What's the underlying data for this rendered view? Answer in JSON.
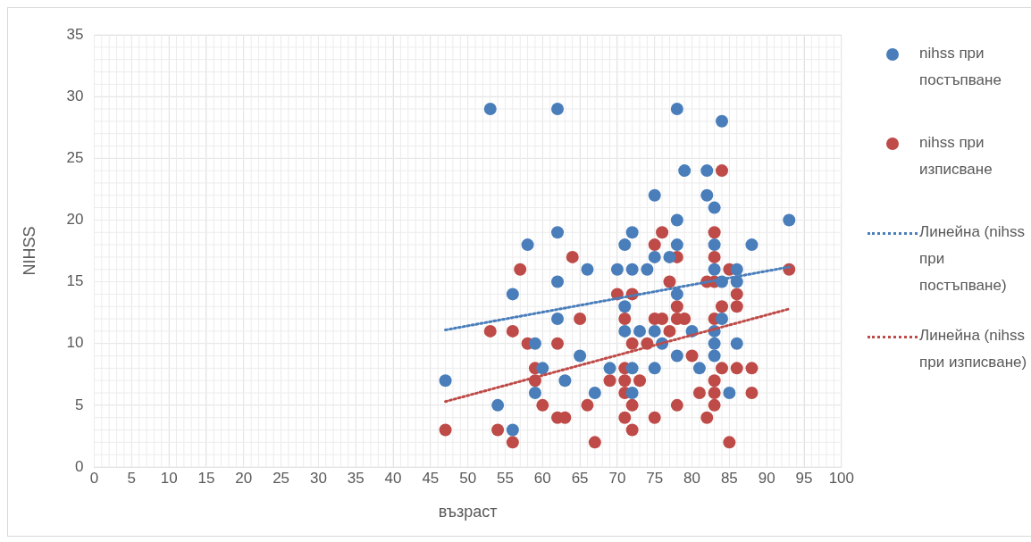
{
  "chart_data": {
    "type": "scatter",
    "xlabel": "възраст",
    "ylabel": "NIHSS",
    "xlim": [
      0,
      100
    ],
    "xticks": [
      0,
      5,
      10,
      15,
      20,
      25,
      30,
      35,
      40,
      45,
      50,
      55,
      60,
      65,
      70,
      75,
      80,
      85,
      90,
      95,
      100
    ],
    "ylim": [
      0,
      35
    ],
    "yticks": [
      0,
      5,
      10,
      15,
      20,
      25,
      30,
      35
    ],
    "grid": true,
    "legend": "right",
    "marker": "circle",
    "series": [
      {
        "name": "nihss при постъпване",
        "color": "#4a7ebb",
        "x": [
          47,
          53,
          54,
          56,
          56,
          58,
          59,
          59,
          60,
          62,
          62,
          62,
          62,
          63,
          65,
          66,
          67,
          69,
          70,
          71,
          71,
          71,
          72,
          72,
          72,
          72,
          73,
          74,
          75,
          75,
          75,
          75,
          76,
          77,
          78,
          78,
          78,
          78,
          78,
          79,
          80,
          81,
          82,
          82,
          83,
          83,
          83,
          83,
          83,
          83,
          84,
          84,
          84,
          85,
          86,
          86,
          86,
          88,
          93
        ],
        "values": [
          7,
          29,
          5,
          3,
          14,
          18,
          10,
          6,
          8,
          29,
          19,
          15,
          12,
          7,
          9,
          16,
          6,
          8,
          16,
          18,
          13,
          11,
          19,
          16,
          8,
          6,
          11,
          16,
          22,
          17,
          11,
          8,
          10,
          17,
          29,
          20,
          18,
          14,
          9,
          24,
          11,
          8,
          24,
          22,
          21,
          18,
          16,
          11,
          10,
          9,
          28,
          15,
          12,
          6,
          16,
          15,
          10,
          18,
          20
        ]
      },
      {
        "name": "nihss при изписване",
        "color": "#be4b48",
        "x": [
          47,
          53,
          54,
          56,
          56,
          57,
          58,
          59,
          59,
          60,
          62,
          62,
          63,
          64,
          65,
          66,
          67,
          69,
          70,
          71,
          71,
          71,
          71,
          71,
          72,
          72,
          72,
          72,
          73,
          74,
          75,
          75,
          75,
          76,
          76,
          77,
          77,
          78,
          78,
          78,
          78,
          79,
          80,
          81,
          82,
          82,
          83,
          83,
          83,
          83,
          83,
          83,
          83,
          84,
          84,
          84,
          85,
          85,
          86,
          86,
          86,
          88,
          88,
          93
        ],
        "values": [
          3,
          11,
          3,
          11,
          2,
          16,
          10,
          8,
          7,
          5,
          10,
          4,
          4,
          17,
          12,
          5,
          2,
          7,
          14,
          12,
          8,
          7,
          6,
          4,
          14,
          10,
          5,
          3,
          7,
          10,
          18,
          12,
          4,
          19,
          12,
          15,
          11,
          17,
          13,
          12,
          5,
          12,
          9,
          6,
          15,
          4,
          19,
          17,
          15,
          12,
          7,
          6,
          5,
          24,
          13,
          8,
          16,
          2,
          14,
          13,
          8,
          8,
          6,
          16
        ]
      },
      {
        "name": "Линейна (nihss при постъпване)",
        "type": "line",
        "line_style": "dotted",
        "marker": "none",
        "color": "#4a7ebb",
        "x": [
          47,
          93
        ],
        "values": [
          11.1,
          16.2
        ]
      },
      {
        "name": "Линейна (nihss при изписване)",
        "type": "line",
        "line_style": "dotted",
        "marker": "none",
        "color": "#be4b48",
        "x": [
          47,
          93
        ],
        "values": [
          5.3,
          12.8
        ]
      }
    ]
  }
}
